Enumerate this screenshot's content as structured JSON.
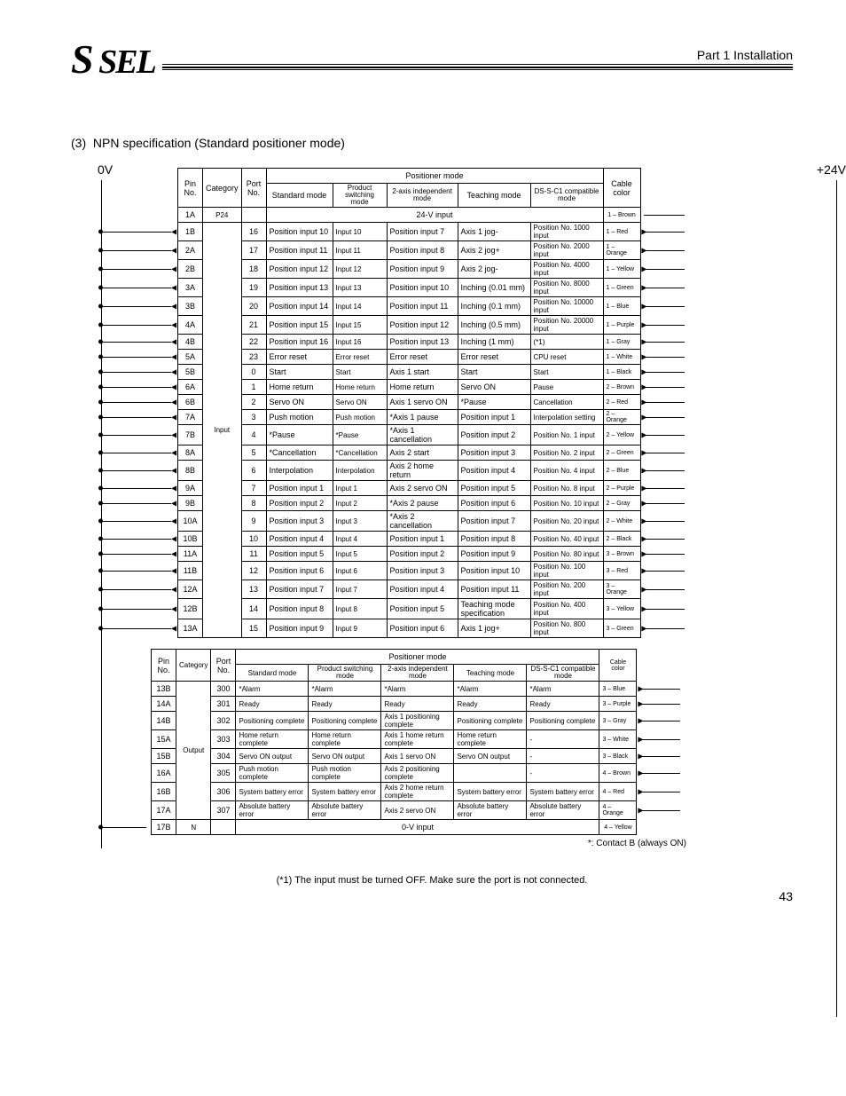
{
  "header": {
    "part_title": "Part 1 Installation",
    "logo_text": "S SEL"
  },
  "section": {
    "number": "(3)",
    "title": "NPN specification (Standard positioner mode)"
  },
  "voltages": {
    "left": "0V",
    "right": "+24V"
  },
  "table1": {
    "headers": {
      "pin": "Pin No.",
      "category": "Category",
      "port": "Port No.",
      "positioner": "Positioner mode",
      "standard": "Standard mode",
      "product_sw": "Product switching mode",
      "two_axis": "2-axis independent mode",
      "teaching": "Teaching mode",
      "ds": "DS-S-C1 compatible mode",
      "cable": "Cable color"
    },
    "span_row": {
      "pin": "1A",
      "cat": "P24",
      "label": "24-V input",
      "cable": "1 – Brown"
    },
    "category_label": "Input",
    "rows": [
      {
        "pin": "1B",
        "port": "16",
        "c1": "Position input 10",
        "c2": "Input 10",
        "c3": "Position input 7",
        "c4": "Axis 1 jog-",
        "c5": "Position No. 1000 input",
        "cable": "1 – Red"
      },
      {
        "pin": "2A",
        "port": "17",
        "c1": "Position input 11",
        "c2": "Input 11",
        "c3": "Position input 8",
        "c4": "Axis 2 jog+",
        "c5": "Position No. 2000 input",
        "cable": "1 – Orange"
      },
      {
        "pin": "2B",
        "port": "18",
        "c1": "Position input 12",
        "c2": "Input 12",
        "c3": "Position input 9",
        "c4": "Axis 2 jog-",
        "c5": "Position No. 4000 input",
        "cable": "1 – Yellow"
      },
      {
        "pin": "3A",
        "port": "19",
        "c1": "Position input 13",
        "c2": "Input 13",
        "c3": "Position input 10",
        "c4": "Inching (0.01 mm)",
        "c5": "Position No. 8000 input",
        "cable": "1 – Green"
      },
      {
        "pin": "3B",
        "port": "20",
        "c1": "Position input 14",
        "c2": "Input 14",
        "c3": "Position input 11",
        "c4": "Inching (0.1 mm)",
        "c5": "Position No. 10000 input",
        "cable": "1 – Blue"
      },
      {
        "pin": "4A",
        "port": "21",
        "c1": "Position input 15",
        "c2": "Input 15",
        "c3": "Position input 12",
        "c4": "Inching (0.5 mm)",
        "c5": "Position No. 20000 input",
        "cable": "1 – Purple"
      },
      {
        "pin": "4B",
        "port": "22",
        "c1": "Position input 16",
        "c2": "Input 16",
        "c3": "Position input 13",
        "c4": "Inching (1 mm)",
        "c5": "(*1)",
        "cable": "1 – Gray"
      },
      {
        "pin": "5A",
        "port": "23",
        "c1": "Error reset",
        "c2": "Error reset",
        "c3": "Error reset",
        "c4": "Error reset",
        "c5": "CPU reset",
        "cable": "1 – White"
      },
      {
        "pin": "5B",
        "port": "0",
        "c1": "Start",
        "c2": "Start",
        "c3": "Axis 1 start",
        "c4": "Start",
        "c5": "Start",
        "cable": "1 – Black"
      },
      {
        "pin": "6A",
        "port": "1",
        "c1": "Home return",
        "c2": "Home return",
        "c3": "Home return",
        "c4": "Servo ON",
        "c5": "Pause",
        "cable": "2 – Brown"
      },
      {
        "pin": "6B",
        "port": "2",
        "c1": "Servo ON",
        "c2": "Servo ON",
        "c3": "Axis 1 servo ON",
        "c4": "*Pause",
        "c5": "Cancellation",
        "cable": "2 – Red"
      },
      {
        "pin": "7A",
        "port": "3",
        "c1": "Push motion",
        "c2": "Push motion",
        "c3": "*Axis 1 pause",
        "c4": "Position input 1",
        "c5": "Interpolation setting",
        "cable": "2 – Orange"
      },
      {
        "pin": "7B",
        "port": "4",
        "c1": "*Pause",
        "c2": "*Pause",
        "c3": "*Axis 1 cancellation",
        "c4": "Position input 2",
        "c5": "Position No. 1 input",
        "cable": "2 – Yellow"
      },
      {
        "pin": "8A",
        "port": "5",
        "c1": "*Cancellation",
        "c2": "*Cancellation",
        "c3": "Axis 2 start",
        "c4": "Position input 3",
        "c5": "Position No. 2 input",
        "cable": "2 – Green"
      },
      {
        "pin": "8B",
        "port": "6",
        "c1": "Interpolation",
        "c2": "Interpolation",
        "c3": "Axis 2 home return",
        "c4": "Position input 4",
        "c5": "Position No. 4 input",
        "cable": "2 – Blue"
      },
      {
        "pin": "9A",
        "port": "7",
        "c1": "Position input 1",
        "c2": "Input 1",
        "c3": "Axis 2 servo ON",
        "c4": "Position input 5",
        "c5": "Position No. 8 input",
        "cable": "2 – Purple"
      },
      {
        "pin": "9B",
        "port": "8",
        "c1": "Position input 2",
        "c2": "Input 2",
        "c3": "*Axis 2 pause",
        "c4": "Position input 6",
        "c5": "Position No. 10 input",
        "cable": "2 – Gray"
      },
      {
        "pin": "10A",
        "port": "9",
        "c1": "Position input 3",
        "c2": "Input 3",
        "c3": "*Axis 2 cancellation",
        "c4": "Position input 7",
        "c5": "Position No. 20 input",
        "cable": "2 – White"
      },
      {
        "pin": "10B",
        "port": "10",
        "c1": "Position input 4",
        "c2": "Input 4",
        "c3": "Position input 1",
        "c4": "Position input 8",
        "c5": "Position No. 40 input",
        "cable": "2 – Black"
      },
      {
        "pin": "11A",
        "port": "11",
        "c1": "Position input 5",
        "c2": "Input 5",
        "c3": "Position input 2",
        "c4": "Position input 9",
        "c5": "Position No. 80 input",
        "cable": "3 – Brown"
      },
      {
        "pin": "11B",
        "port": "12",
        "c1": "Position input 6",
        "c2": "Input 6",
        "c3": "Position input 3",
        "c4": "Position input 10",
        "c5": "Position No. 100 input",
        "cable": "3 – Red"
      },
      {
        "pin": "12A",
        "port": "13",
        "c1": "Position input 7",
        "c2": "Input 7",
        "c3": "Position input 4",
        "c4": "Position input 11",
        "c5": "Position No. 200 input",
        "cable": "3 – Orange"
      },
      {
        "pin": "12B",
        "port": "14",
        "c1": "Position input 8",
        "c2": "Input 8",
        "c3": "Position input 5",
        "c4": "Teaching mode specification",
        "c5": "Position No. 400 input",
        "cable": "3 – Yellow"
      },
      {
        "pin": "13A",
        "port": "15",
        "c1": "Position input 9",
        "c2": "Input 9",
        "c3": "Position input 6",
        "c4": "Axis 1 jog+",
        "c5": "Position No. 800 input",
        "cable": "3 – Green"
      }
    ]
  },
  "table2": {
    "headers": {
      "pin": "Pin No.",
      "category": "Category",
      "port": "Port No.",
      "positioner": "Positioner mode",
      "standard": "Standard mode",
      "product_sw": "Product switching mode",
      "two_axis": "2-axis independent mode",
      "teaching": "Teaching mode",
      "ds": "DS-S-C1 compatible mode",
      "cable": "Cable color"
    },
    "category_label": "Output",
    "rows": [
      {
        "pin": "13B",
        "port": "300",
        "c1": "*Alarm",
        "c2": "*Alarm",
        "c3": "*Alarm",
        "c4": "*Alarm",
        "c5": "*Alarm",
        "cable": "3 – Blue"
      },
      {
        "pin": "14A",
        "port": "301",
        "c1": "Ready",
        "c2": "Ready",
        "c3": "Ready",
        "c4": "Ready",
        "c5": "Ready",
        "cable": "3 – Purple"
      },
      {
        "pin": "14B",
        "port": "302",
        "c1": "Positioning complete",
        "c2": "Positioning complete",
        "c3": "Axis 1 positioning complete",
        "c4": "Positioning complete",
        "c5": "Positioning complete",
        "cable": "3 – Gray"
      },
      {
        "pin": "15A",
        "port": "303",
        "c1": "Home return complete",
        "c2": "Home return complete",
        "c3": "Axis 1 home return complete",
        "c4": "Home return complete",
        "c5": "-",
        "cable": "3 – White"
      },
      {
        "pin": "15B",
        "port": "304",
        "c1": "Servo ON output",
        "c2": "Servo ON output",
        "c3": "Axis 1 servo ON",
        "c4": "Servo ON output",
        "c5": "-",
        "cable": "3 – Black"
      },
      {
        "pin": "16A",
        "port": "305",
        "c1": "Push motion complete",
        "c2": "Push motion complete",
        "c3": "Axis 2 positioning complete",
        "c4": "",
        "c5": "-",
        "cable": "4 – Brown"
      },
      {
        "pin": "16B",
        "port": "306",
        "c1": "System battery error",
        "c2": "System battery error",
        "c3": "Axis 2 home return complete",
        "c4": "System battery error",
        "c5": "System battery error",
        "cable": "4 – Red"
      },
      {
        "pin": "17A",
        "port": "307",
        "c1": "Absolute battery error",
        "c2": "Absolute battery error",
        "c3": "Axis 2 servo ON",
        "c4": "Absolute battery error",
        "c5": "Absolute battery error",
        "cable": "4 – Orange"
      }
    ],
    "span_row": {
      "pin": "17B",
      "cat": "N",
      "label": "0-V input",
      "cable": "4 – Yellow"
    }
  },
  "notes": {
    "contact": "*: Contact B (always ON)",
    "footnote": "(*1) The input must be turned OFF. Make sure the port is not connected."
  },
  "page_number": "43"
}
